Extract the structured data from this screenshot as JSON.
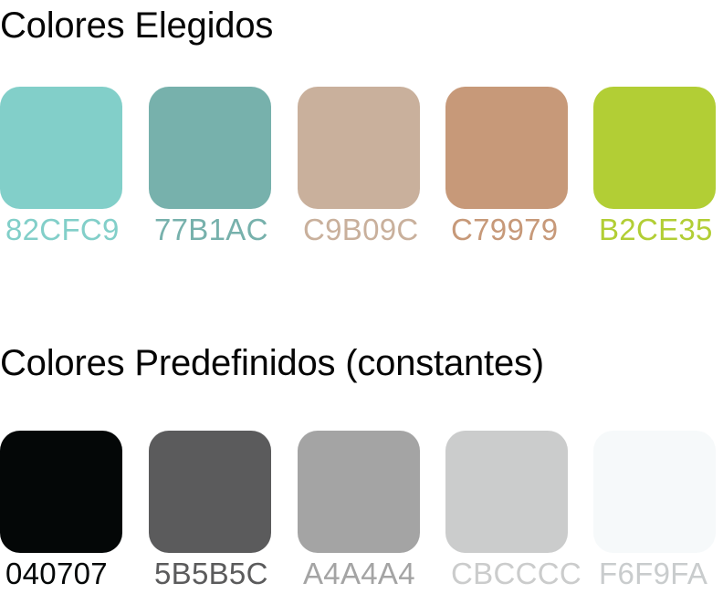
{
  "chosen": {
    "title": "Colores Elegidos",
    "swatches": [
      {
        "code": "82CFC9",
        "color": "#82CFC9"
      },
      {
        "code": "77B1AC",
        "color": "#77B1AC"
      },
      {
        "code": "C9B09C",
        "color": "#C9B09C"
      },
      {
        "code": "C79979",
        "color": "#C79979"
      },
      {
        "code": "B2CE35",
        "color": "#B2CE35"
      }
    ]
  },
  "predefined": {
    "title": "Colores Predefinidos (constantes)",
    "swatches": [
      {
        "code": "040707",
        "color": "#040707",
        "label_color": "#040707"
      },
      {
        "code": "5B5B5C",
        "color": "#5B5B5C",
        "label_color": "#5B5B5C"
      },
      {
        "code": "A4A4A4",
        "color": "#A4A4A4",
        "label_color": "#A4A4A4"
      },
      {
        "code": "CBCCCC",
        "color": "#CBCCCC",
        "label_color": "#CBCCCC"
      },
      {
        "code": "F6F9FA",
        "color": "#F6F9FA",
        "label_color": "#C9CCCD"
      }
    ]
  }
}
